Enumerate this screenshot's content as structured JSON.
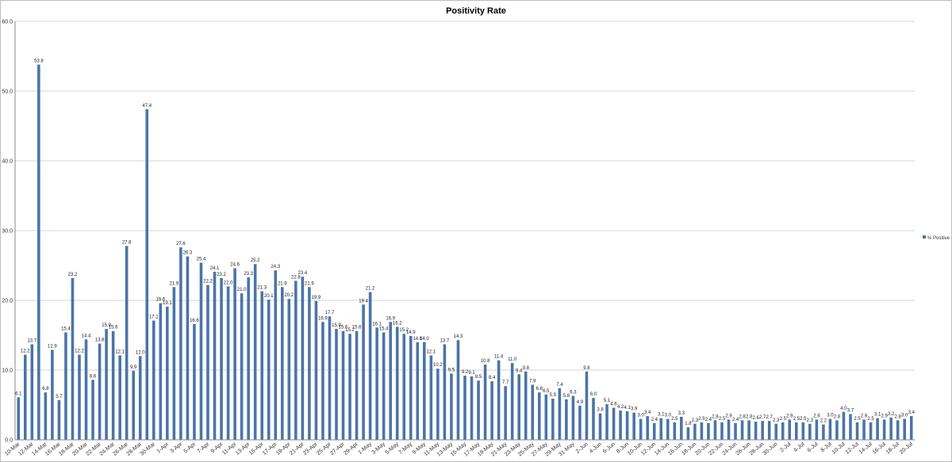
{
  "chart_data": {
    "type": "bar",
    "title": "Positivity Rate",
    "xlabel": "",
    "ylabel": "",
    "ylim": [
      0,
      60
    ],
    "yticks": [
      "0.0",
      "10.0",
      "20.0",
      "30.0",
      "40.0",
      "50.0",
      "60.0"
    ],
    "grid": true,
    "legend_position": "right",
    "series": [
      {
        "name": "% Positive",
        "color": "#4a74a8",
        "values": [
          6.1,
          12.2,
          13.7,
          53.8,
          6.8,
          12.9,
          5.7,
          15.4,
          23.2,
          12.2,
          14.4,
          8.6,
          13.8,
          15.9,
          15.6,
          12.1,
          27.8,
          9.9,
          12.0,
          47.4,
          17.1,
          19.6,
          19.1,
          21.9,
          27.6,
          26.3,
          16.6,
          25.4,
          22.2,
          24.1,
          23.2,
          22.0,
          24.6,
          21.0,
          23.3,
          25.2,
          21.3,
          20.1,
          24.3,
          21.9,
          20.2,
          22.8,
          23.4,
          21.9,
          19.9,
          16.9,
          17.7,
          15.9,
          15.6,
          15.2,
          15.6,
          19.4,
          21.2,
          16.1,
          15.4,
          16.9,
          16.2,
          15.2,
          14.9,
          14.0,
          14.0,
          12.1,
          10.2,
          13.7,
          9.5,
          14.3,
          9.2,
          9.1,
          8.5,
          10.8,
          8.4,
          11.4,
          7.7,
          11.0,
          9.4,
          9.8,
          7.9,
          6.8,
          6.5,
          5.9,
          7.4,
          5.8,
          6.3,
          4.9,
          9.8,
          6.0,
          3.8,
          5.1,
          4.6,
          4.2,
          4.1,
          3.9,
          3.0,
          3.4,
          2.4,
          3.1,
          3.0,
          2.5,
          3.3,
          1.8,
          2.3,
          2.5,
          2.4,
          2.8,
          2.5,
          2.9,
          2.4,
          2.8,
          2.8,
          2.6,
          2.7,
          2.7,
          2.3,
          2.5,
          2.9,
          2.5,
          2.5,
          2.3,
          2.9,
          2.2,
          3.0,
          2.8,
          4.0,
          3.7,
          2.5,
          2.9,
          2.5,
          3.1,
          2.9,
          3.2,
          2.8,
          3.0,
          3.4
        ]
      }
    ],
    "x_tick_labels": [
      "10-Mar",
      "12-Mar",
      "14-Mar",
      "16-Mar",
      "18-Mar",
      "20-Mar",
      "22-Mar",
      "24-Mar",
      "26-Mar",
      "28-Mar",
      "30-Mar",
      "1-Apr",
      "3-Apr",
      "5-Apr",
      "7-Apr",
      "9-Apr",
      "11-Apr",
      "13-Apr",
      "15-Apr",
      "17-Apr",
      "19-Apr",
      "21-Apr",
      "23-Apr",
      "25-Apr",
      "27-Apr",
      "29-Apr",
      "1-May",
      "3-May",
      "5-May",
      "7-May",
      "9-May",
      "11-May",
      "13-May",
      "15-May",
      "17-May",
      "19-May",
      "21-May",
      "23-May",
      "25-May",
      "27-May",
      "29-May",
      "31-May",
      "2-Jun",
      "4-Jun",
      "6-Jun",
      "8-Jun",
      "10-Jun",
      "12-Jun",
      "14-Jun",
      "16-Jun",
      "18-Jun",
      "20-Jun",
      "22-Jun",
      "24-Jun",
      "26-Jun",
      "28-Jun",
      "30-Jun",
      "2-Jul",
      "4-Jul",
      "6-Jul",
      "8-Jul",
      "10-Jul",
      "12-Jul",
      "14-Jul",
      "16-Jul",
      "18-Jul",
      "20-Jul"
    ]
  }
}
